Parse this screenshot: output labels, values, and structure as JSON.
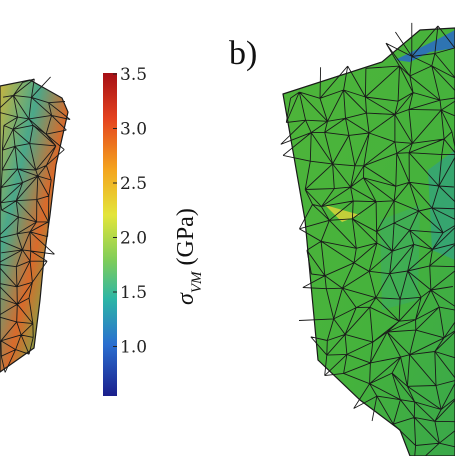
{
  "colorbar": {
    "ticks": [
      "3.5",
      "3.0",
      "2.5",
      "2.0",
      "1.5",
      "1.0"
    ],
    "symbol": "σ",
    "subscript": "VM",
    "unit": "(GPa)",
    "colors": [
      "#b2182b",
      "#e8591e",
      "#f4c23a",
      "#d8e24a",
      "#4fbf6a",
      "#2aa7b8",
      "#2a64c8",
      "#1b2a9a"
    ]
  },
  "panels": [
    {
      "label": "b)"
    }
  ]
}
